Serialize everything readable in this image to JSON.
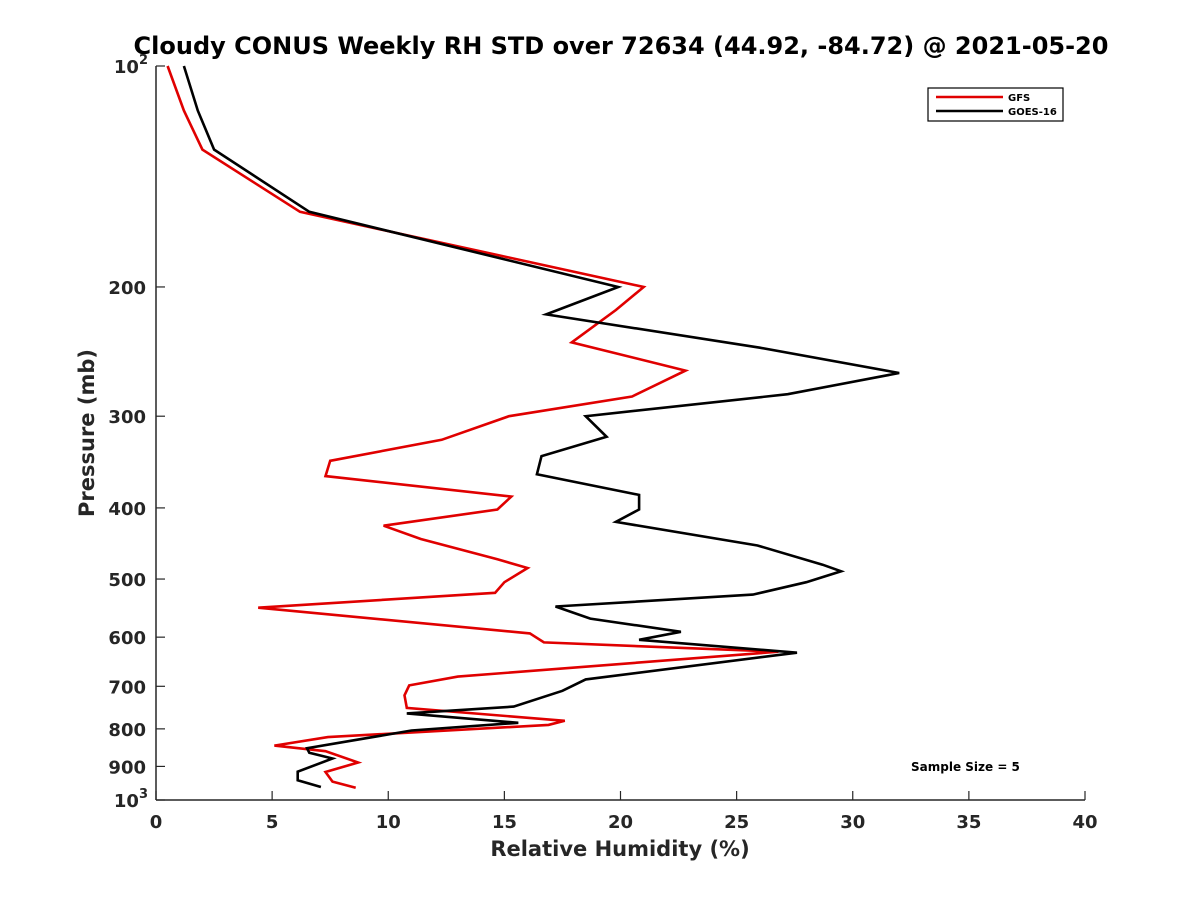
{
  "chart_data": {
    "type": "line",
    "title": "Cloudy CONUS Weekly RH STD over 72634 (44.92, -84.72) @ 2021-05-20",
    "xlabel": "Relative Humidity (%)",
    "ylabel": "Pressure (mb)",
    "xlim": [
      0,
      40
    ],
    "ylim": [
      100,
      1000
    ],
    "y_scale": "log",
    "y_reversed": true,
    "grid": false,
    "legend_position": "top-right",
    "x_ticks": [
      0,
      5,
      10,
      15,
      20,
      25,
      30,
      35,
      40
    ],
    "x_tick_labels": [
      "0",
      "5",
      "10",
      "15",
      "20",
      "25",
      "30",
      "35",
      "40"
    ],
    "y_ticks": [
      100,
      200,
      300,
      400,
      500,
      600,
      700,
      800,
      900,
      1000
    ],
    "y_tick_labels": [
      {
        "base": "10",
        "exp": "2"
      },
      {
        "base": "200",
        "exp": ""
      },
      {
        "base": "300",
        "exp": ""
      },
      {
        "base": "400",
        "exp": ""
      },
      {
        "base": "500",
        "exp": ""
      },
      {
        "base": "600",
        "exp": ""
      },
      {
        "base": "700",
        "exp": ""
      },
      {
        "base": "800",
        "exp": ""
      },
      {
        "base": "900",
        "exp": ""
      },
      {
        "base": "10",
        "exp": "3"
      }
    ],
    "annotation": "Sample Size = 5",
    "series": [
      {
        "name": "GFS",
        "color": "#e00000",
        "points": [
          [
            0.5,
            100
          ],
          [
            1.2,
            115
          ],
          [
            2.0,
            130
          ],
          [
            6.2,
            158
          ],
          [
            21.0,
            200
          ],
          [
            19.8,
            215
          ],
          [
            17.9,
            238
          ],
          [
            22.8,
            260
          ],
          [
            20.5,
            282
          ],
          [
            15.2,
            300
          ],
          [
            12.3,
            323
          ],
          [
            7.5,
            345
          ],
          [
            7.3,
            362
          ],
          [
            15.3,
            386
          ],
          [
            14.7,
            402
          ],
          [
            9.8,
            423
          ],
          [
            11.4,
            441
          ],
          [
            14.7,
            470
          ],
          [
            16.0,
            483
          ],
          [
            15.0,
            505
          ],
          [
            14.6,
            522
          ],
          [
            4.4,
            547
          ],
          [
            16.1,
            593
          ],
          [
            16.7,
            610
          ],
          [
            26.8,
            628
          ],
          [
            13.0,
            679
          ],
          [
            10.9,
            698
          ],
          [
            10.7,
            720
          ],
          [
            10.8,
            749
          ],
          [
            17.6,
            780
          ],
          [
            16.9,
            790
          ],
          [
            7.4,
            821
          ],
          [
            5.1,
            843
          ],
          [
            7.3,
            858
          ],
          [
            8.7,
            889
          ],
          [
            7.3,
            916
          ],
          [
            7.6,
            944
          ],
          [
            8.6,
            962
          ]
        ]
      },
      {
        "name": "GOES-16",
        "color": "#000000",
        "points": [
          [
            1.2,
            100
          ],
          [
            1.8,
            115
          ],
          [
            2.5,
            130
          ],
          [
            6.6,
            158
          ],
          [
            19.9,
            200
          ],
          [
            16.8,
            218
          ],
          [
            26.0,
            242
          ],
          [
            32.0,
            262
          ],
          [
            27.2,
            280
          ],
          [
            18.5,
            300
          ],
          [
            19.4,
            320
          ],
          [
            16.6,
            340
          ],
          [
            16.4,
            360
          ],
          [
            20.8,
            384
          ],
          [
            20.8,
            402
          ],
          [
            19.8,
            418
          ],
          [
            25.9,
            450
          ],
          [
            28.7,
            478
          ],
          [
            29.5,
            488
          ],
          [
            28.0,
            505
          ],
          [
            25.7,
            525
          ],
          [
            17.2,
            545
          ],
          [
            18.7,
            566
          ],
          [
            22.6,
            590
          ],
          [
            20.8,
            605
          ],
          [
            27.6,
            630
          ],
          [
            18.5,
            685
          ],
          [
            17.5,
            710
          ],
          [
            15.4,
            746
          ],
          [
            10.8,
            762
          ],
          [
            15.6,
            785
          ],
          [
            11.0,
            804
          ],
          [
            6.5,
            850
          ],
          [
            6.6,
            862
          ],
          [
            7.6,
            878
          ],
          [
            6.1,
            915
          ],
          [
            6.1,
            940
          ],
          [
            7.1,
            960
          ]
        ]
      }
    ]
  }
}
